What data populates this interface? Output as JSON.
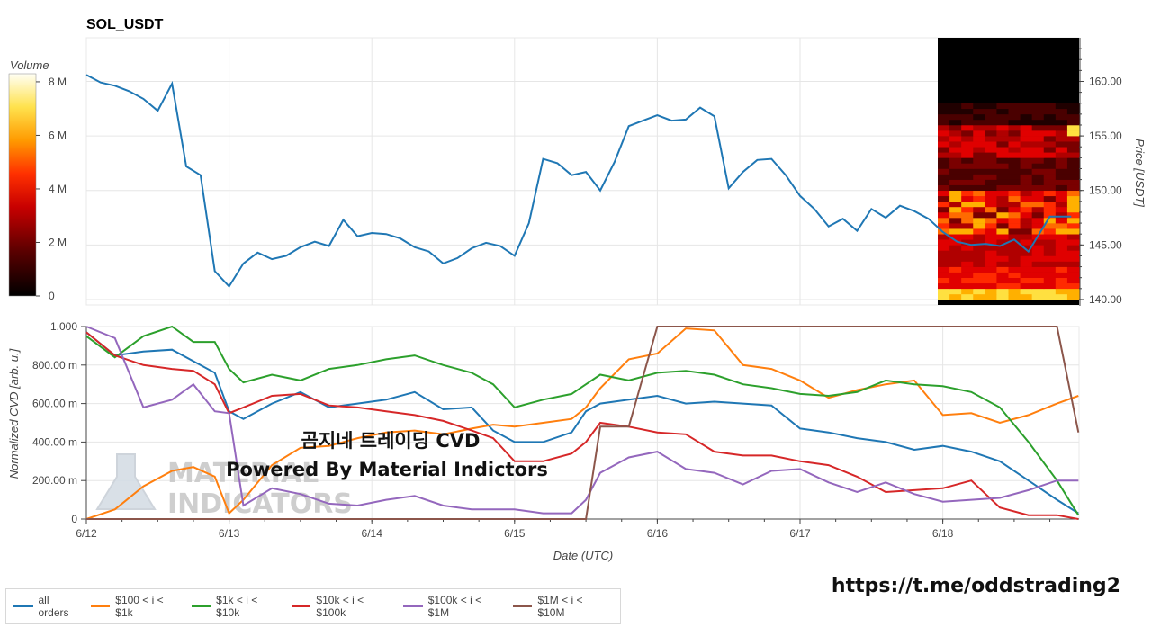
{
  "chart_data": [
    {
      "type": "line",
      "title": "SOL_USDT",
      "ylabel": "Price [USDT]",
      "ylim": [
        139.5,
        164
      ],
      "y_ticks": [
        "140.00",
        "145.00",
        "150.00",
        "155.00",
        "160.00"
      ],
      "grid": true,
      "series": [
        {
          "color": "#1f77b4",
          "x": [
            0,
            0.1,
            0.2,
            0.3,
            0.4,
            0.5,
            0.6,
            0.7,
            0.8,
            0.9,
            1.0,
            1.1,
            1.2,
            1.3,
            1.4,
            1.5,
            1.6,
            1.7,
            1.8,
            1.9,
            2.0,
            2.1,
            2.2,
            2.3,
            2.4,
            2.5,
            2.6,
            2.7,
            2.8,
            2.9,
            3.0,
            3.1,
            3.2,
            3.3,
            3.4,
            3.5,
            3.6,
            3.7,
            3.8,
            3.9,
            4.0,
            4.1,
            4.2,
            4.3,
            4.4,
            4.5,
            4.6,
            4.7,
            4.8,
            4.9,
            5.0,
            5.1,
            5.2,
            5.3,
            5.4,
            5.5,
            5.6,
            5.7,
            5.8,
            5.9,
            6.0,
            6.1,
            6.2,
            6.3,
            6.4,
            6.5,
            6.6,
            6.75,
            6.9
          ],
          "values": [
            160.6,
            159.9,
            159.6,
            159.1,
            158.4,
            157.3,
            159.8,
            152.2,
            151.4,
            142.6,
            141.2,
            143.3,
            144.3,
            143.7,
            144.0,
            144.8,
            145.3,
            144.9,
            147.3,
            145.8,
            146.1,
            146.0,
            145.6,
            144.8,
            144.4,
            143.3,
            143.8,
            144.7,
            145.2,
            144.9,
            144.0,
            147.0,
            152.9,
            152.5,
            151.4,
            151.7,
            150.0,
            152.6,
            155.9,
            156.4,
            156.9,
            156.4,
            156.5,
            157.6,
            156.8,
            150.2,
            151.7,
            152.8,
            152.9,
            151.4,
            149.5,
            148.3,
            146.7,
            147.4,
            146.3,
            148.3,
            147.5,
            148.6,
            148.1,
            147.4,
            146.2,
            145.3,
            145.0,
            145.1,
            144.9,
            145.5,
            144.4,
            147.6,
            147.6
          ],
          "note": "x is days after 6/12 00:00 UTC"
        }
      ],
      "x_ticks": [
        "6/12",
        "6/13",
        "6/14",
        "6/15",
        "6/16",
        "6/17",
        "6/18"
      ],
      "heatmap": {
        "colorbar_label": "Volume",
        "colorbar_ticks": [
          "0",
          "2 M",
          "4 M",
          "6 M",
          "8 M"
        ],
        "colorbar_range": [
          0,
          8.3
        ]
      }
    },
    {
      "type": "line",
      "xlabel": "Date (UTC)",
      "ylabel": "Normalized CVD [arb. u.]",
      "ylim": [
        0,
        1
      ],
      "y_ticks": [
        "0",
        "200.00 m",
        "400.00 m",
        "600.00 m",
        "800.00 m",
        "1.000"
      ],
      "x_ticks": [
        "6/12",
        "6/13",
        "6/14",
        "6/15",
        "6/16",
        "6/17",
        "6/18"
      ],
      "x": [
        0,
        0.2,
        0.4,
        0.6,
        0.75,
        0.9,
        1.0,
        1.1,
        1.3,
        1.5,
        1.7,
        1.9,
        2.1,
        2.3,
        2.5,
        2.7,
        2.85,
        3.0,
        3.2,
        3.4,
        3.5,
        3.6,
        3.8,
        4.0,
        4.2,
        4.4,
        4.6,
        4.8,
        5.0,
        5.2,
        5.4,
        5.6,
        5.8,
        6.0,
        6.2,
        6.4,
        6.6,
        6.8,
        6.95
      ],
      "grid": true,
      "series": [
        {
          "name": "all orders",
          "color": "#1f77b4",
          "values": [
            0.97,
            0.85,
            0.87,
            0.88,
            0.82,
            0.76,
            0.56,
            0.52,
            0.6,
            0.66,
            0.58,
            0.6,
            0.62,
            0.66,
            0.57,
            0.58,
            0.46,
            0.4,
            0.4,
            0.45,
            0.56,
            0.6,
            0.62,
            0.64,
            0.6,
            0.61,
            0.6,
            0.59,
            0.47,
            0.45,
            0.42,
            0.4,
            0.36,
            0.38,
            0.35,
            0.3,
            0.2,
            0.1,
            0.03
          ]
        },
        {
          "name": "$100 < i < $1k",
          "color": "#ff7f0e",
          "values": [
            0.0,
            0.05,
            0.17,
            0.25,
            0.27,
            0.22,
            0.03,
            0.1,
            0.28,
            0.37,
            0.38,
            0.42,
            0.45,
            0.46,
            0.44,
            0.47,
            0.49,
            0.48,
            0.5,
            0.52,
            0.58,
            0.68,
            0.83,
            0.86,
            0.99,
            0.98,
            0.8,
            0.78,
            0.72,
            0.63,
            0.67,
            0.7,
            0.72,
            0.54,
            0.55,
            0.5,
            0.54,
            0.6,
            0.64
          ]
        },
        {
          "name": "$1k < i < $10k",
          "color": "#2ca02c",
          "values": [
            0.95,
            0.84,
            0.95,
            1.0,
            0.92,
            0.92,
            0.78,
            0.71,
            0.75,
            0.72,
            0.78,
            0.8,
            0.83,
            0.85,
            0.8,
            0.76,
            0.7,
            0.58,
            0.62,
            0.65,
            0.7,
            0.75,
            0.72,
            0.76,
            0.77,
            0.75,
            0.7,
            0.68,
            0.65,
            0.64,
            0.66,
            0.72,
            0.7,
            0.69,
            0.66,
            0.58,
            0.4,
            0.2,
            0.02
          ]
        },
        {
          "name": "$10k < i < $100k",
          "color": "#d62728",
          "values": [
            0.97,
            0.85,
            0.8,
            0.78,
            0.77,
            0.7,
            0.55,
            0.58,
            0.64,
            0.65,
            0.59,
            0.58,
            0.56,
            0.54,
            0.51,
            0.46,
            0.42,
            0.3,
            0.3,
            0.34,
            0.4,
            0.5,
            0.48,
            0.45,
            0.44,
            0.35,
            0.33,
            0.33,
            0.3,
            0.28,
            0.22,
            0.14,
            0.15,
            0.16,
            0.2,
            0.06,
            0.02,
            0.02,
            0.0
          ]
        },
        {
          "name": "$100k < i < $1M",
          "color": "#9467bd",
          "values": [
            1.0,
            0.94,
            0.58,
            0.62,
            0.7,
            0.56,
            0.55,
            0.07,
            0.16,
            0.13,
            0.08,
            0.07,
            0.1,
            0.12,
            0.07,
            0.05,
            0.05,
            0.05,
            0.03,
            0.03,
            0.1,
            0.24,
            0.32,
            0.35,
            0.26,
            0.24,
            0.18,
            0.25,
            0.26,
            0.19,
            0.14,
            0.19,
            0.13,
            0.09,
            0.1,
            0.11,
            0.15,
            0.2,
            0.2
          ]
        },
        {
          "name": "$1M < i < $10M",
          "color": "#8c564b",
          "values": [
            0.0,
            0.0,
            0.0,
            0.0,
            0.0,
            0.0,
            0.0,
            0.0,
            0.0,
            0.0,
            0.0,
            0.0,
            0.0,
            0.0,
            0.0,
            0.0,
            0.0,
            0.0,
            0.0,
            0.0,
            0.0,
            0.48,
            0.48,
            1.0,
            1.0,
            1.0,
            1.0,
            1.0,
            1.0,
            1.0,
            1.0,
            1.0,
            1.0,
            1.0,
            1.0,
            1.0,
            1.0,
            1.0,
            0.45
          ]
        }
      ]
    }
  ],
  "overlay": {
    "line1": "곰지네 트레이딩 CVD",
    "line2": "Powered By Material Indictors",
    "url": "https://t.me/oddstrading2",
    "watermark_line1": "MATERIAL",
    "watermark_line2": "INDICATORS"
  },
  "colors": {
    "grid": "#e6e6e6",
    "axis": "#444444"
  }
}
